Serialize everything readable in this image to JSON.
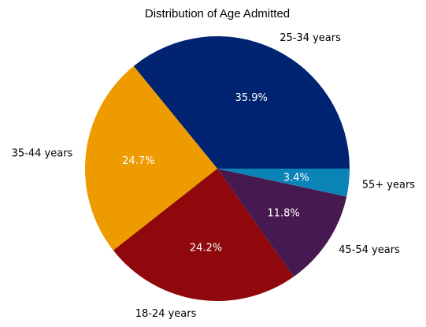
{
  "chart_data": {
    "type": "pie",
    "title": "Distribution of Age Admitted",
    "start_angle_deg": 0,
    "direction": "counterclockwise",
    "slices": [
      {
        "label": "25-34 years",
        "value": 35.9,
        "pct_label": "35.9%",
        "color": "#002471"
      },
      {
        "label": "35-44 years",
        "value": 24.7,
        "pct_label": "24.7%",
        "color": "#EE9B00"
      },
      {
        "label": "18-24 years",
        "value": 24.2,
        "pct_label": "24.2%",
        "color": "#8E080C"
      },
      {
        "label": "45-54 years",
        "value": 11.8,
        "pct_label": "11.8%",
        "color": "#461A51"
      },
      {
        "label": "55+ years",
        "value": 3.4,
        "pct_label": "3.4%",
        "color": "#0A84B6"
      }
    ]
  }
}
